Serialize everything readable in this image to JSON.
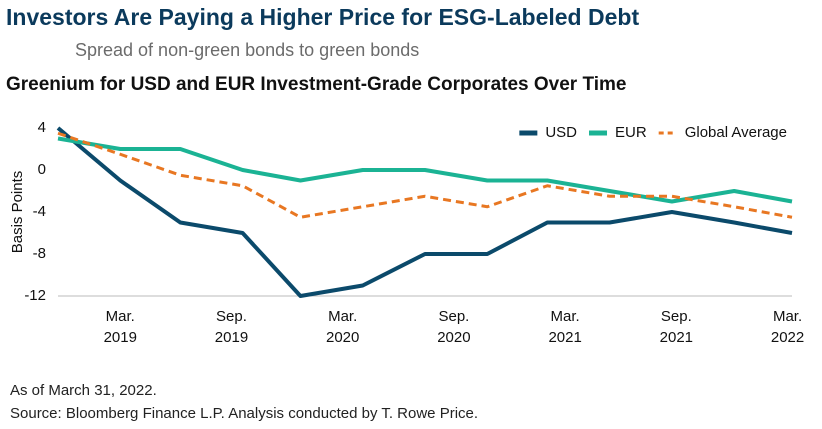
{
  "title": "Investors Are Paying a Higher Price for ESG-Labeled Debt",
  "subtitle": "Spread of non-green bonds to green bonds",
  "chart_data": {
    "type": "line",
    "title": "Greenium for USD and EUR Investment-Grade Corporates Over Time",
    "y_label": "Basis Points",
    "x": [
      2018.92,
      2019.2,
      2019.47,
      2019.75,
      2020.01,
      2020.29,
      2020.57,
      2020.85,
      2021.12,
      2021.4,
      2021.68,
      2021.96,
      2022.22
    ],
    "xlim": [
      2018.92,
      2022.22
    ],
    "xticks": [
      {
        "value": 2019.2,
        "label": "Mar. 2019"
      },
      {
        "value": 2019.7,
        "label": "Sep. 2019"
      },
      {
        "value": 2020.2,
        "label": "Mar. 2020"
      },
      {
        "value": 2020.7,
        "label": "Sep. 2020"
      },
      {
        "value": 2021.2,
        "label": "Mar. 2021"
      },
      {
        "value": 2021.7,
        "label": "Sep. 2021"
      },
      {
        "value": 2022.2,
        "label": "Mar. 2022"
      }
    ],
    "ylim": [
      -12,
      4
    ],
    "yticks": [
      4,
      0,
      -4,
      -8,
      -12
    ],
    "legend": "top-right",
    "series": [
      {
        "name": "USD",
        "color": "#0b4a6b",
        "dashed": false,
        "values": [
          4,
          -1,
          -5,
          -6,
          -12,
          -11,
          -8,
          -8,
          -5,
          -5,
          -4,
          -5,
          -6
        ]
      },
      {
        "name": "EUR",
        "color": "#1bb394",
        "dashed": false,
        "values": [
          3,
          2,
          2,
          0,
          -1,
          0,
          0,
          -1,
          -1,
          -2,
          -3,
          -2,
          -3
        ]
      },
      {
        "name": "Global Average",
        "color": "#e87722",
        "dashed": true,
        "values": [
          3.5,
          1.5,
          -0.5,
          -1.5,
          -4.5,
          -3.5,
          -2.5,
          -3.5,
          -1.5,
          -2.5,
          -2.5,
          -3.5,
          -4.5
        ]
      }
    ]
  },
  "notes": [
    "As of March 31, 2022.",
    "Source: Bloomberg Finance L.P. Analysis conducted by T. Rowe Price."
  ]
}
